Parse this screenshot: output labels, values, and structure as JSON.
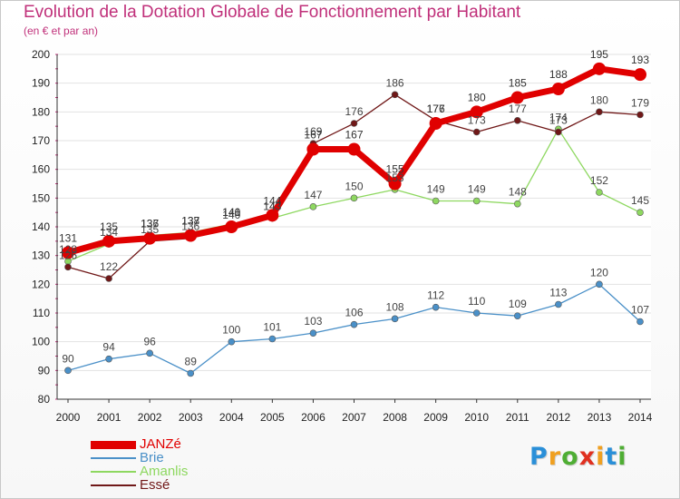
{
  "title": "Evolution de la Dotation Globale de Fonctionnement par Habitant",
  "subtitle": "(en € et par an)",
  "brand": {
    "letters": [
      "P",
      "r",
      "o",
      "x",
      "i",
      "t",
      "i"
    ],
    "colors": [
      "#2a8fd8",
      "#f0a020",
      "#4fae34",
      "#e03020",
      "#f0a020",
      "#2a8fd8",
      "#4fae34"
    ]
  },
  "chart_data": {
    "type": "line",
    "title": "Evolution de la Dotation Globale de Fonctionnement par Habitant",
    "ylabel": "(en € et par an)",
    "ylim": [
      80,
      200
    ],
    "yticks": [
      80,
      90,
      100,
      110,
      120,
      130,
      140,
      150,
      160,
      170,
      180,
      190,
      200
    ],
    "categories": [
      "2000",
      "2001",
      "2002",
      "2003",
      "2004",
      "2005",
      "2006",
      "2007",
      "2008",
      "2009",
      "2010",
      "2011",
      "2012",
      "2013",
      "2014"
    ],
    "legend_position": "bottom-left",
    "series": [
      {
        "name": "JANZé",
        "color": "#e00000",
        "emphasis": true,
        "values": [
          131,
          135,
          136,
          137,
          140,
          144,
          167,
          167,
          155,
          176,
          180,
          185,
          188,
          195,
          193
        ]
      },
      {
        "name": "Brie",
        "color": "#4a90c8",
        "values": [
          90,
          94,
          96,
          89,
          100,
          101,
          103,
          106,
          108,
          112,
          110,
          109,
          113,
          120,
          107
        ]
      },
      {
        "name": "Amanlis",
        "color": "#8ed860",
        "values": [
          128,
          134,
          137,
          138,
          141,
          143,
          147,
          150,
          153,
          149,
          149,
          148,
          174,
          152,
          145
        ]
      },
      {
        "name": "Essé",
        "color": "#701818",
        "values": [
          126,
          122,
          135,
          136,
          140,
          143,
          169,
          176,
          186,
          177,
          173,
          177,
          173,
          180,
          179
        ]
      }
    ]
  }
}
